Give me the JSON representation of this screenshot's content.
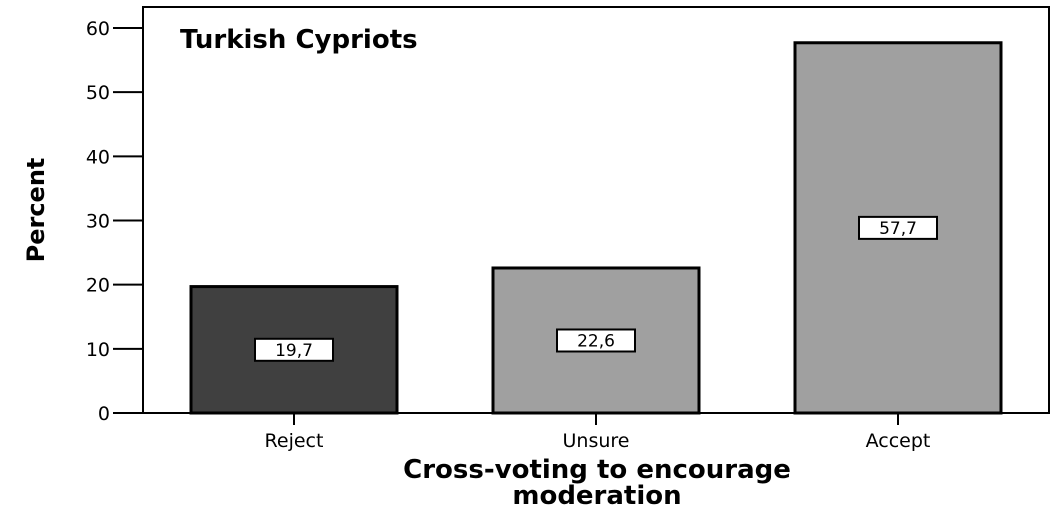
{
  "chart_data": {
    "type": "bar",
    "title": "Turkish Cypriots",
    "xlabel": "Cross-voting to encourage moderation",
    "xlabel_lines": [
      "Cross-voting to encourage",
      "moderation"
    ],
    "ylabel": "Percent",
    "ylim": [
      0,
      60
    ],
    "yticks": [
      0,
      10,
      20,
      30,
      40,
      50,
      60
    ],
    "categories": [
      "Reject",
      "Unsure",
      "Accept"
    ],
    "values": [
      19.7,
      22.6,
      57.7
    ],
    "value_labels": [
      "19,7",
      "22,6",
      "57,7"
    ],
    "bar_colors": [
      "#404040",
      "#a0a0a0",
      "#a0a0a0"
    ],
    "grid": false,
    "legend": false
  }
}
